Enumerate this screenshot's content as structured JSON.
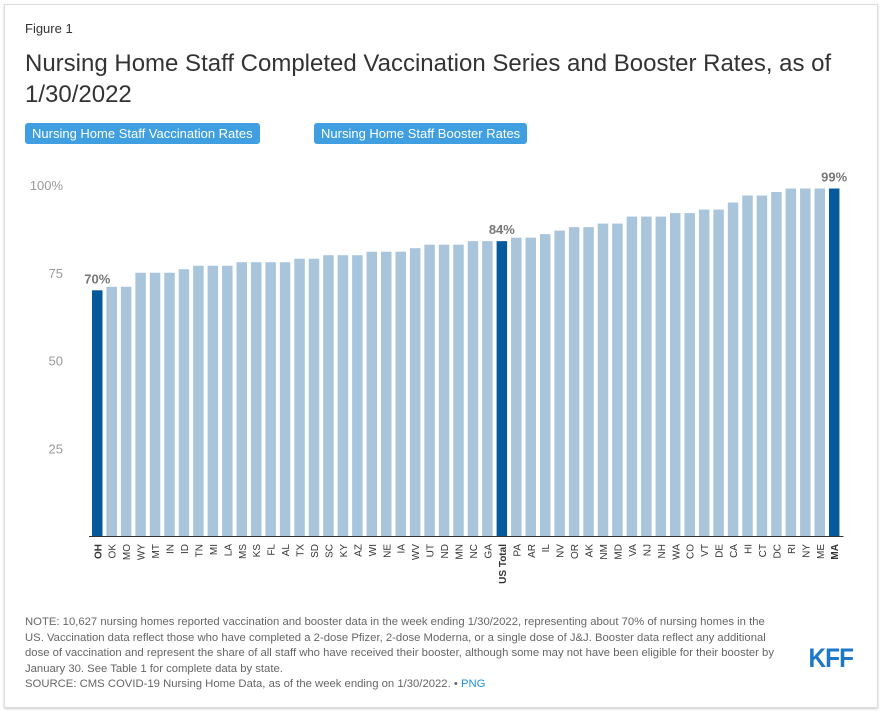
{
  "figure_label": "Figure 1",
  "title": "Nursing Home Staff Completed Vaccination Series and Booster Rates, as of 1/30/2022",
  "tabs": [
    "Nursing Home Staff Vaccination Rates",
    "Nursing Home Staff Booster Rates"
  ],
  "note": "NOTE: 10,627 nursing homes reported vaccination and booster data in the week ending 1/30/2022, representing about 70% of nursing homes in the US. Vaccination data reflect those who have completed a 2-dose Pfizer, 2-dose Moderna, or a single dose of J&J. Booster data reflect any additional dose of vaccination and represent the share of all staff who have received their booster, although some may not have been eligible for their booster by January 30. See Table 1 for complete data by state.",
  "source": "SOURCE: CMS COVID-19 Nursing Home Data, as of the week ending on 1/30/2022. •",
  "png_link": "PNG",
  "logo": "KFF",
  "colors": {
    "bar": "#a8c5dc",
    "highlight": "#045a9a",
    "axis_text": "#999999"
  },
  "chart_data": {
    "type": "bar",
    "title": "Nursing Home Staff Completed Vaccination Series and Booster Rates, as of 1/30/2022",
    "categories": [
      "OH",
      "OK",
      "MO",
      "WY",
      "MT",
      "IN",
      "ID",
      "TN",
      "MI",
      "LA",
      "MS",
      "KS",
      "FL",
      "AL",
      "TX",
      "SD",
      "SC",
      "KY",
      "AZ",
      "WI",
      "NE",
      "IA",
      "WV",
      "UT",
      "ND",
      "MN",
      "NC",
      "GA",
      "US Total",
      "PA",
      "AR",
      "IL",
      "NV",
      "OR",
      "AK",
      "NM",
      "MD",
      "VA",
      "NJ",
      "NH",
      "WA",
      "CO",
      "VT",
      "DE",
      "CA",
      "HI",
      "CT",
      "DC",
      "RI",
      "NY",
      "ME",
      "MA"
    ],
    "values": [
      70,
      71,
      71,
      75,
      75,
      75,
      76,
      77,
      77,
      77,
      78,
      78,
      78,
      78,
      79,
      79,
      80,
      80,
      80,
      81,
      81,
      81,
      82,
      83,
      83,
      83,
      84,
      84,
      84,
      85,
      85,
      86,
      87,
      88,
      88,
      89,
      89,
      91,
      91,
      91,
      92,
      92,
      93,
      93,
      95,
      97,
      97,
      98,
      99,
      99,
      99,
      99
    ],
    "highlighted": [
      "OH",
      "US Total",
      "MA"
    ],
    "data_labels": {
      "OH": "70%",
      "US Total": "84%",
      "MA": "99%"
    },
    "yticks": [
      "100%",
      "75",
      "50",
      "25"
    ],
    "ytick_values": [
      100,
      75,
      50,
      25
    ],
    "ylim": [
      0,
      100
    ],
    "grid": false
  }
}
